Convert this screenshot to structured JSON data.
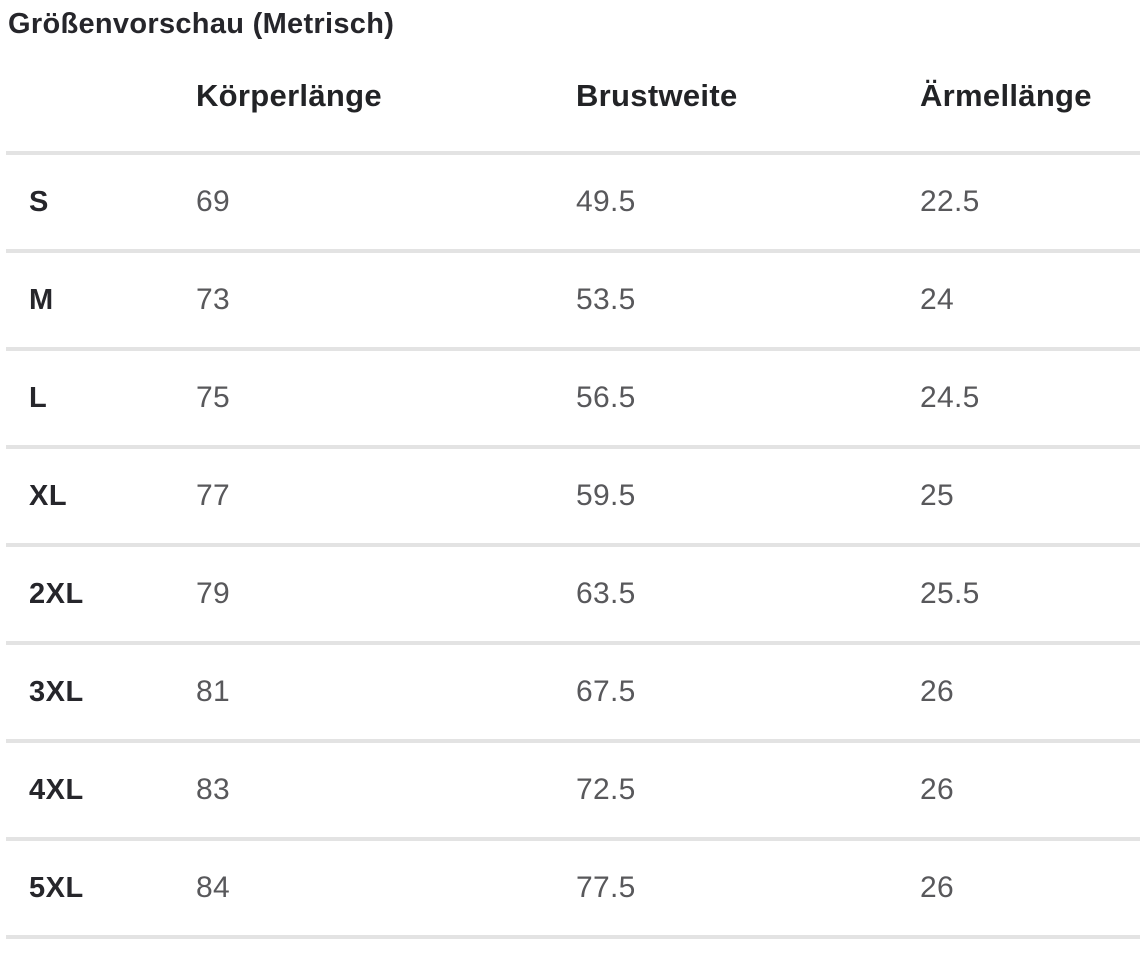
{
  "title": "Größenvorschau (Metrisch)",
  "table": {
    "columns": [
      "Körperlänge",
      "Brustweite",
      "Ärmellänge"
    ],
    "rows": [
      {
        "size": "S",
        "values": [
          "69",
          "49.5",
          "22.5"
        ]
      },
      {
        "size": "M",
        "values": [
          "73",
          "53.5",
          "24"
        ]
      },
      {
        "size": "L",
        "values": [
          "75",
          "56.5",
          "24.5"
        ]
      },
      {
        "size": "XL",
        "values": [
          "77",
          "59.5",
          "25"
        ]
      },
      {
        "size": "2XL",
        "values": [
          "79",
          "63.5",
          "25.5"
        ]
      },
      {
        "size": "3XL",
        "values": [
          "81",
          "67.5",
          "26"
        ]
      },
      {
        "size": "4XL",
        "values": [
          "83",
          "72.5",
          "26"
        ]
      },
      {
        "size": "5XL",
        "values": [
          "84",
          "77.5",
          "26"
        ]
      }
    ]
  },
  "colors": {
    "background": "#ffffff",
    "heading_text": "#26262b",
    "value_text": "#58585b",
    "divider": "#e3e3e3"
  }
}
